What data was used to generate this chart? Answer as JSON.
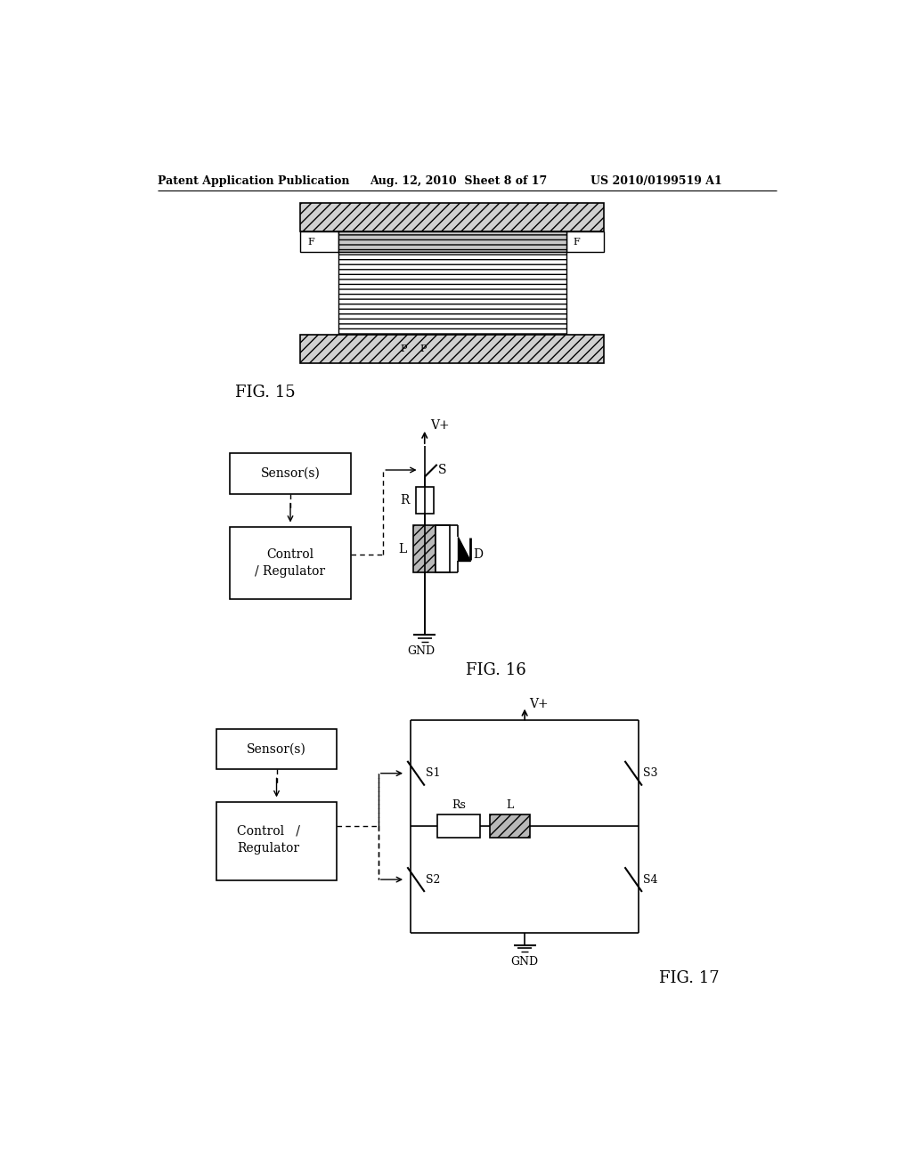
{
  "header_left": "Patent Application Publication",
  "header_mid": "Aug. 12, 2010  Sheet 8 of 17",
  "header_right": "US 2010/0199519 A1",
  "bg_color": "#ffffff",
  "fig15_label": "FIG. 15",
  "fig16_label": "FIG. 16",
  "fig17_label": "FIG. 17"
}
